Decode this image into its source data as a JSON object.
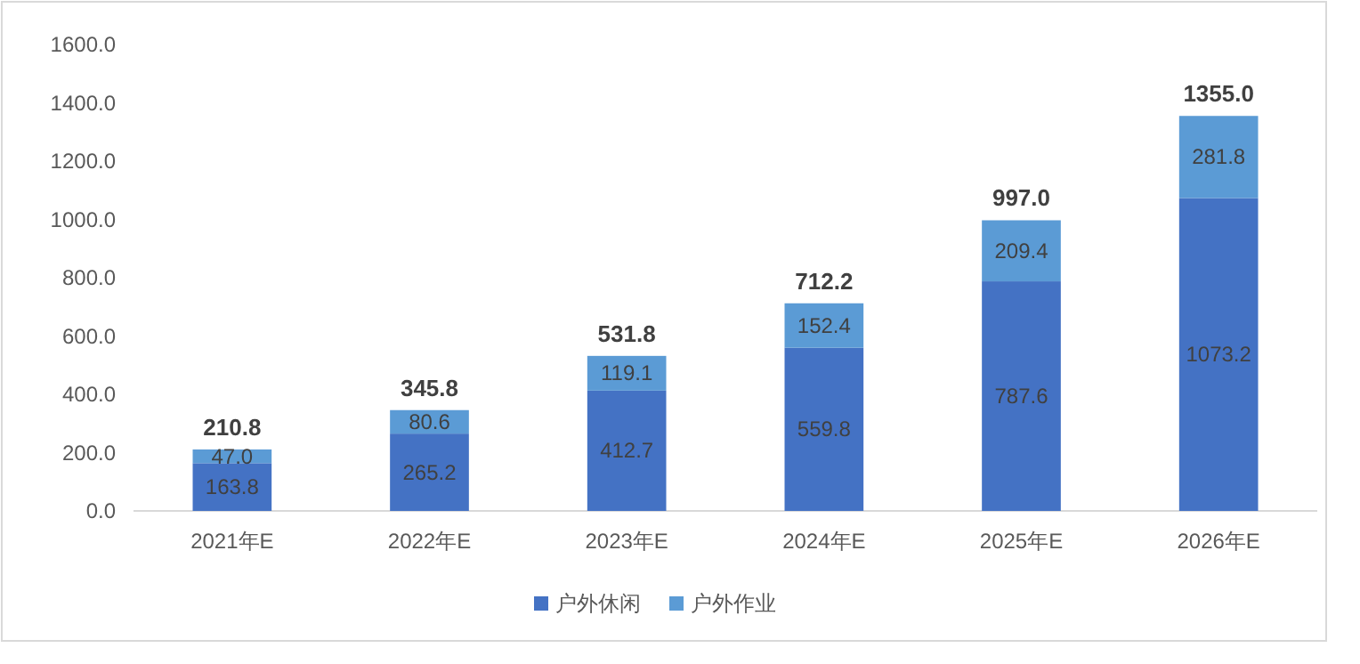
{
  "chart_data": {
    "type": "bar",
    "stacked": true,
    "categories": [
      "2021年E",
      "2022年E",
      "2023年E",
      "2024年E",
      "2025年E",
      "2026年E"
    ],
    "series": [
      {
        "name": "户外休闲",
        "color": "#4472c4",
        "values": [
          163.8,
          265.2,
          412.7,
          559.8,
          787.6,
          1073.2
        ],
        "value_labels": [
          "163.8",
          "265.2",
          "412.7",
          "559.8",
          "787.6",
          "1073.2"
        ]
      },
      {
        "name": "户外作业",
        "color": "#5b9bd5",
        "values": [
          47.0,
          80.6,
          119.1,
          152.4,
          209.4,
          281.8
        ],
        "value_labels": [
          "47.0",
          "80.6",
          "119.1",
          "152.4",
          "209.4",
          "281.8"
        ]
      }
    ],
    "totals": [
      "210.8",
      "345.8",
      "531.8",
      "712.2",
      "997.0",
      "1355.0"
    ],
    "ylim": [
      0,
      1600
    ],
    "yticks": [
      {
        "value": 0,
        "label": "0.0"
      },
      {
        "value": 200,
        "label": "200.0"
      },
      {
        "value": 400,
        "label": "400.0"
      },
      {
        "value": 600,
        "label": "600.0"
      },
      {
        "value": 800,
        "label": "800.0"
      },
      {
        "value": 1000,
        "label": "1000.0"
      },
      {
        "value": 1200,
        "label": "1200.0"
      },
      {
        "value": 1400,
        "label": "1400.0"
      },
      {
        "value": 1600,
        "label": "1600.0"
      }
    ],
    "grid": false,
    "legend": "bottom"
  }
}
